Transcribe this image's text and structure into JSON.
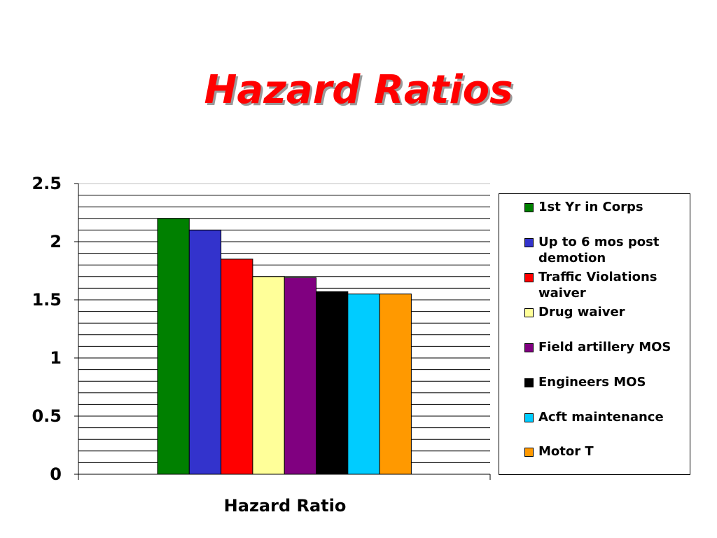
{
  "slide": {
    "title": "Hazard Ratios"
  },
  "chart_data": {
    "type": "bar",
    "title": "Hazard Ratios",
    "xlabel": "Hazard Ratio",
    "ylabel": "",
    "categories": [
      "Hazard Ratio"
    ],
    "ylim": [
      0,
      2.5
    ],
    "yticks": [
      "0",
      "0.5",
      "1",
      "1.5",
      "2",
      "2.5"
    ],
    "grid": true,
    "legend_position": "right",
    "series": [
      {
        "name": "1st Yr in Corps",
        "values": [
          2.2
        ],
        "color": "#008000"
      },
      {
        "name": "Up to 6 mos post demotion",
        "values": [
          2.1
        ],
        "color": "#3333cc"
      },
      {
        "name": "Traffic Violations waiver",
        "values": [
          1.85
        ],
        "color": "#ff0000"
      },
      {
        "name": "Drug waiver",
        "values": [
          1.7
        ],
        "color": "#ffff99"
      },
      {
        "name": "Field artillery MOS",
        "values": [
          1.69
        ],
        "color": "#800080"
      },
      {
        "name": "Engineers MOS",
        "values": [
          1.57
        ],
        "color": "#000000"
      },
      {
        "name": "Acft maintenance",
        "values": [
          1.55
        ],
        "color": "#00ccff"
      },
      {
        "name": "Motor T",
        "values": [
          1.55
        ],
        "color": "#ff9900"
      }
    ]
  }
}
